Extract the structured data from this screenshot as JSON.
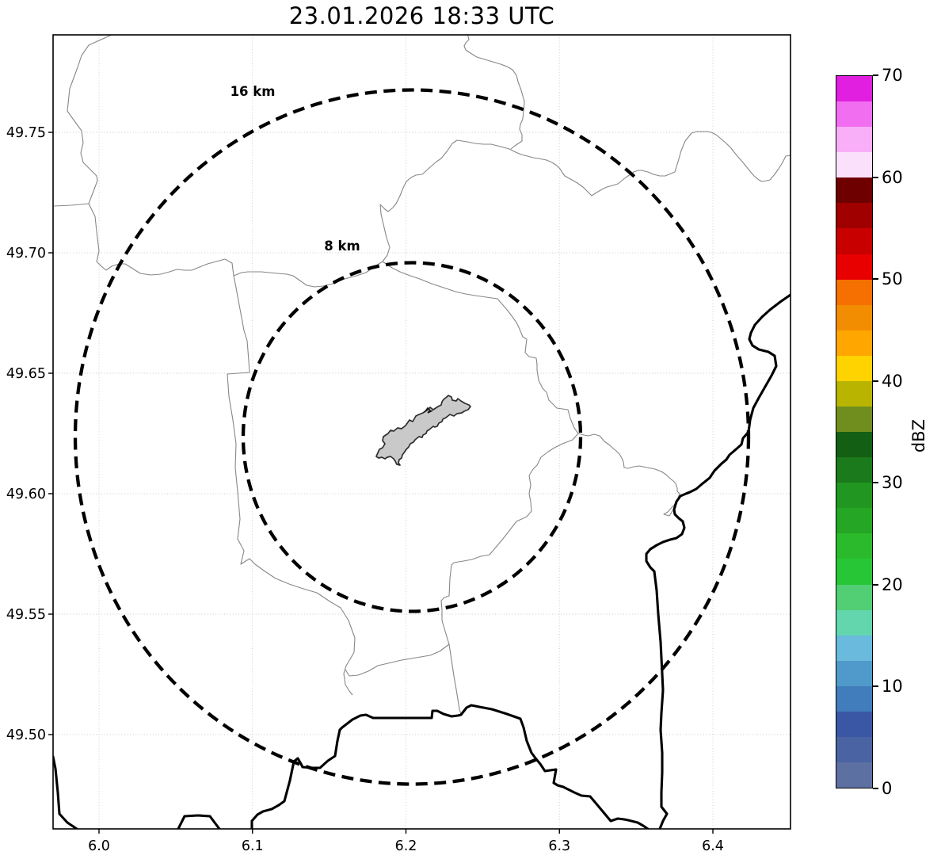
{
  "title": "23.01.2026 18:33 UTC",
  "map": {
    "x_tick_labels": [
      "6.0",
      "6.1",
      "6.2",
      "6.3",
      "6.4"
    ],
    "y_tick_labels": [
      "49.75",
      "49.70",
      "49.65",
      "49.60",
      "49.55",
      "49.50"
    ],
    "range_rings": [
      {
        "label": "16 km",
        "radius_km": 16
      },
      {
        "label": "8 km",
        "radius_km": 8
      }
    ],
    "features": {
      "country_border_color": "#000000",
      "river_color": "#878787",
      "city_fill": "#c9c9c9",
      "city_outline": "#2e2e2e"
    }
  },
  "colorbar": {
    "label": "dBZ",
    "tick_labels": [
      "0",
      "10",
      "20",
      "30",
      "40",
      "50",
      "60",
      "70"
    ],
    "min": 0,
    "max": 70,
    "segment_colors_bottom_to_top": [
      "#5d70a2",
      "#4a63a2",
      "#3a57a5",
      "#417cbc",
      "#4f9aca",
      "#69badc",
      "#63d6ae",
      "#52ce74",
      "#27c637",
      "#2bba2b",
      "#25a625",
      "#219721",
      "#1b7a1b",
      "#135f13",
      "#6f8e1e",
      "#b8b400",
      "#ffd300",
      "#ffa600",
      "#f28c00",
      "#f57000",
      "#e80000",
      "#c80000",
      "#a00000",
      "#6e0000",
      "#fbe0fb",
      "#f8aff8",
      "#f16ef1",
      "#e01fe0"
    ]
  }
}
